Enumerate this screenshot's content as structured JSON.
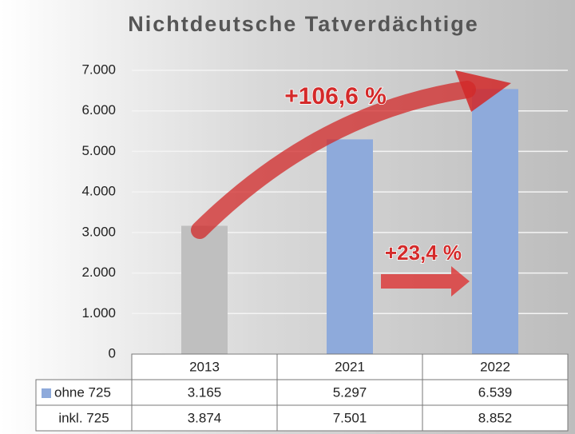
{
  "chart_data": {
    "type": "bar",
    "title": "Nichtdeutsche Tatverdächtige",
    "categories": [
      "2013",
      "2021",
      "2022"
    ],
    "series": [
      {
        "name": "ohne 725",
        "color": "#8eaadb",
        "point_colors": [
          "#bfbfbf",
          "#8eaadb",
          "#8eaadb"
        ],
        "values": [
          3165,
          5297,
          6539
        ],
        "value_labels": [
          "3.165",
          "5.297",
          "6.539"
        ]
      },
      {
        "name": "inkl. 725",
        "values": [
          3874,
          7501,
          8852
        ],
        "value_labels": [
          "3.874",
          "7.501",
          "8.852"
        ]
      }
    ],
    "ylim": [
      0,
      7000
    ],
    "yticks": [
      0,
      {
        "value": 1000,
        "label": "1.000"
      },
      {
        "value": 2000,
        "label": "2.000"
      },
      {
        "value": 3000,
        "label": "3.000"
      },
      {
        "value": 4000,
        "label": "4.000"
      },
      {
        "value": 5000,
        "label": "5.000"
      },
      {
        "value": 6000,
        "label": "6.000"
      },
      {
        "value": 7000,
        "label": "7.000"
      }
    ],
    "grid": true,
    "annotations": [
      "+106,6 %",
      "+23,4 %"
    ]
  }
}
